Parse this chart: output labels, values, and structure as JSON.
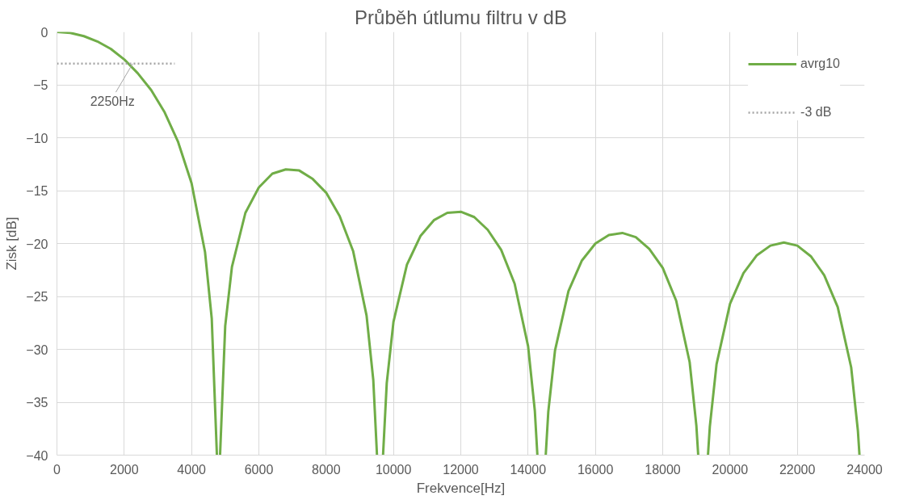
{
  "chart_data": {
    "type": "line",
    "title": "Průběh útlumu filtru v dB",
    "xlabel": "Frekvence[Hz]",
    "ylabel": "Zisk [dB]",
    "xlim": [
      0,
      24000
    ],
    "xticks": [
      0,
      2000,
      4000,
      6000,
      8000,
      10000,
      12000,
      14000,
      16000,
      18000,
      20000,
      22000,
      24000
    ],
    "ylim": [
      -40,
      0
    ],
    "yticks": [
      -40,
      -35,
      -30,
      -25,
      -20,
      -15,
      -10,
      -5,
      0
    ],
    "grid": true,
    "legend": "top right",
    "series": [
      {
        "name": "avrg10",
        "color": "#70ad47",
        "line_style": "solid",
        "x": [
          0,
          400,
          800,
          1200,
          1600,
          2000,
          2400,
          2800,
          3200,
          3600,
          4000,
          4400,
          4600,
          4753,
          4800,
          4847,
          5000,
          5200,
          5600,
          6000,
          6400,
          6800,
          7200,
          7600,
          8000,
          8400,
          8800,
          9200,
          9400,
          9510,
          9600,
          9690,
          9800,
          10000,
          10400,
          10800,
          11200,
          11600,
          12000,
          12400,
          12800,
          13200,
          13600,
          14000,
          14200,
          14276,
          14400,
          14524,
          14600,
          14800,
          15200,
          15600,
          16000,
          16400,
          16800,
          17200,
          17600,
          18000,
          18400,
          18800,
          19000,
          19055,
          19200,
          19345,
          19400,
          19600,
          20000,
          20400,
          20800,
          21200,
          21600,
          22000,
          22400,
          22800,
          23200,
          23600,
          23800,
          23847
        ],
        "values": [
          0,
          -0.1,
          -0.4,
          -0.9,
          -1.6,
          -2.6,
          -3.9,
          -5.5,
          -7.6,
          -10.4,
          -14.3,
          -20.8,
          -27.1,
          -40,
          null,
          -40,
          -27.8,
          -22.2,
          -17.1,
          -14.7,
          -13.4,
          -13.0,
          -13.1,
          -13.9,
          -15.2,
          -17.4,
          -20.7,
          -26.8,
          -32.9,
          -40,
          null,
          -40,
          -33.2,
          -27.4,
          -22.0,
          -19.3,
          -17.8,
          -17.1,
          -17.0,
          -17.5,
          -18.7,
          -20.6,
          -23.8,
          -29.7,
          -35.8,
          -40,
          null,
          -40,
          -35.9,
          -30.1,
          -24.5,
          -21.6,
          -20.0,
          -19.2,
          -19.0,
          -19.4,
          -20.5,
          -22.3,
          -25.4,
          -31.2,
          -37.2,
          -40,
          null,
          -40,
          -37.3,
          -31.4,
          -25.7,
          -22.8,
          -21.1,
          -20.2,
          -19.9,
          -20.2,
          -21.2,
          -23.0,
          -26.0,
          -31.7,
          -37.7,
          -40
        ]
      },
      {
        "name": "-3 dB",
        "color": "#a5a5a5",
        "line_style": "dotted",
        "x": [
          0,
          3500
        ],
        "values": [
          -3,
          -3
        ]
      }
    ],
    "annotations": [
      {
        "text": "2250Hz",
        "x": 2250,
        "y": -3
      }
    ]
  }
}
